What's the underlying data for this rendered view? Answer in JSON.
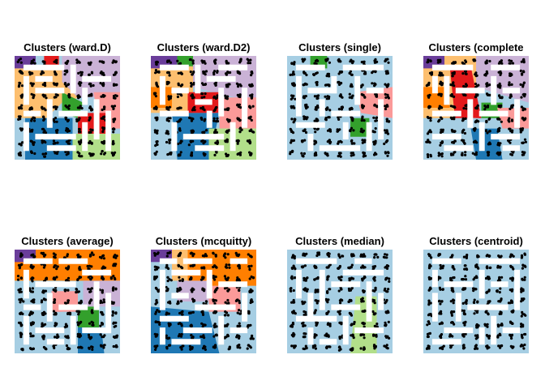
{
  "figure": {
    "background": "#ffffff",
    "panel_background": "#a6cee3",
    "wall_color": "#ffffff",
    "point_color": "#000000"
  },
  "palette": {
    "light-blue": "#a6cee3",
    "dark-blue": "#1f78b4",
    "light-green": "#b2df8a",
    "dark-green": "#33a02c",
    "pink": "#fb9a99",
    "red": "#e31a1c",
    "light-orange": "#fdbf6f",
    "orange": "#ff7f00",
    "lavender": "#cab2d6",
    "purple": "#6a3d9a"
  },
  "chart_data": [
    {
      "type": "heatmap",
      "title": "Clusters (ward.D)",
      "grid": {
        "cols": 9,
        "rows": 9
      },
      "regions": [
        {
          "cluster_color": "light-orange",
          "cells": "left-middle band"
        },
        {
          "cluster_color": "dark-blue",
          "cells": "bottom-left"
        },
        {
          "cluster_color": "dark-green",
          "cells": "center"
        },
        {
          "cluster_color": "red",
          "cells": "center-right"
        },
        {
          "cluster_color": "pink",
          "cells": "right-middle"
        },
        {
          "cluster_color": "lavender",
          "cells": "top-right"
        },
        {
          "cluster_color": "light-green",
          "cells": "bottom-right"
        },
        {
          "cluster_color": "purple",
          "cells": "top-left corner"
        }
      ]
    },
    {
      "type": "heatmap",
      "title": "Clusters (ward.D2)",
      "grid": {
        "cols": 9,
        "rows": 9
      },
      "regions": [
        {
          "cluster_color": "orange",
          "cells": "left-middle"
        },
        {
          "cluster_color": "red",
          "cells": "center"
        },
        {
          "cluster_color": "dark-blue",
          "cells": "center-bottom"
        },
        {
          "cluster_color": "lavender",
          "cells": "top-right"
        },
        {
          "cluster_color": "pink",
          "cells": "right-middle"
        },
        {
          "cluster_color": "light-green",
          "cells": "bottom-right"
        },
        {
          "cluster_color": "purple",
          "cells": "top-left corner"
        }
      ]
    },
    {
      "type": "heatmap",
      "title": "Clusters (single)",
      "grid": {
        "cols": 9,
        "rows": 9
      },
      "regions": [
        {
          "cluster_color": "light-blue",
          "cells": "most cells"
        },
        {
          "cluster_color": "dark-green",
          "cells": "small patches top and center-right"
        },
        {
          "cluster_color": "pink",
          "cells": "right-middle"
        }
      ]
    },
    {
      "type": "heatmap",
      "title": "Clusters (complete",
      "grid": {
        "cols": 9,
        "rows": 9
      },
      "regions": [
        {
          "cluster_color": "orange",
          "cells": "left-middle"
        },
        {
          "cluster_color": "red",
          "cells": "center"
        },
        {
          "cluster_color": "dark-blue",
          "cells": "bottom-center"
        },
        {
          "cluster_color": "lavender",
          "cells": "top-right"
        },
        {
          "cluster_color": "pink",
          "cells": "right-middle"
        },
        {
          "cluster_color": "dark-green",
          "cells": "center-right"
        },
        {
          "cluster_color": "purple",
          "cells": "top-left corner"
        }
      ]
    },
    {
      "type": "heatmap",
      "title": "Clusters (average)",
      "grid": {
        "cols": 9,
        "rows": 9
      },
      "regions": [
        {
          "cluster_color": "orange",
          "cells": "top-right"
        },
        {
          "cluster_color": "purple",
          "cells": "top-left corner"
        },
        {
          "cluster_color": "light-blue",
          "cells": "left and bottom"
        },
        {
          "cluster_color": "pink",
          "cells": "center"
        },
        {
          "cluster_color": "dark-green",
          "cells": "center-right"
        },
        {
          "cluster_color": "dark-blue",
          "cells": "bottom-center"
        },
        {
          "cluster_color": "lavender",
          "cells": "right-middle"
        }
      ]
    },
    {
      "type": "heatmap",
      "title": "Clusters (mcquitty)",
      "grid": {
        "cols": 9,
        "rows": 9
      },
      "regions": [
        {
          "cluster_color": "orange",
          "cells": "top-right"
        },
        {
          "cluster_color": "purple",
          "cells": "top-left corner"
        },
        {
          "cluster_color": "light-blue",
          "cells": "left-middle"
        },
        {
          "cluster_color": "dark-blue",
          "cells": "bottom"
        },
        {
          "cluster_color": "pink",
          "cells": "center-right"
        },
        {
          "cluster_color": "lavender",
          "cells": "center"
        }
      ]
    },
    {
      "type": "heatmap",
      "title": "Clusters (median)",
      "grid": {
        "cols": 9,
        "rows": 9
      },
      "regions": [
        {
          "cluster_color": "light-blue",
          "cells": "most cells"
        },
        {
          "cluster_color": "light-green",
          "cells": "bottom-right"
        }
      ]
    },
    {
      "type": "heatmap",
      "title": "Clusters (centroid)",
      "grid": {
        "cols": 9,
        "rows": 9
      },
      "regions": [
        {
          "cluster_color": "light-blue",
          "cells": "all cells"
        }
      ]
    }
  ]
}
